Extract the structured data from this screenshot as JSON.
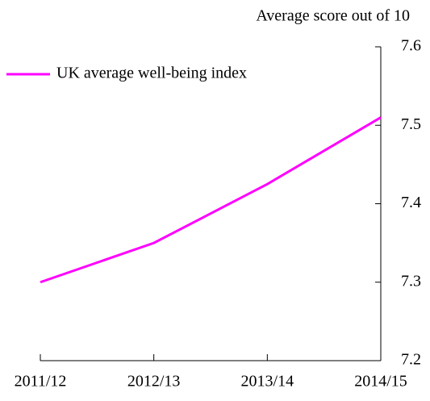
{
  "chart_data": {
    "type": "line",
    "y_axis_label": "Average score out of 10",
    "categories": [
      "2011/12",
      "2012/13",
      "2013/14",
      "2014/15"
    ],
    "series": [
      {
        "name": "UK average well-being index",
        "color": "#ff00ff",
        "values": [
          7.3,
          7.35,
          7.425,
          7.51
        ]
      }
    ],
    "ylim": [
      7.2,
      7.6
    ],
    "yticks": [
      7.2,
      7.3,
      7.4,
      7.5,
      7.6
    ],
    "grid": false,
    "legend": "top-left"
  }
}
